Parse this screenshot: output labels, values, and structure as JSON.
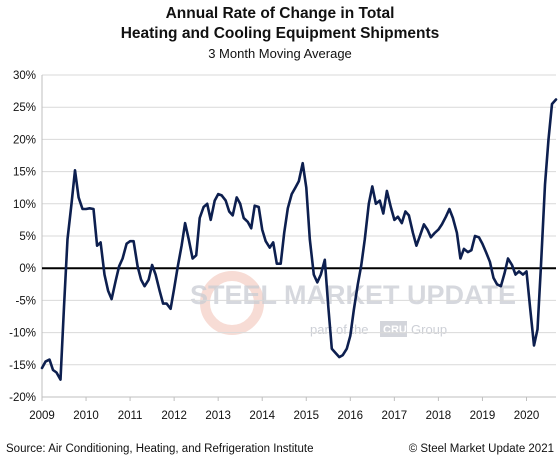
{
  "chart_data": {
    "type": "line",
    "title_lines": [
      "Annual Rate of Change in Total",
      "Heating and Cooling Equipment Shipments"
    ],
    "subtitle": "3 Month Moving Average",
    "xlabel": "",
    "ylabel": "",
    "ylim": [
      -20,
      30
    ],
    "yticks": [
      -20,
      -15,
      -10,
      -5,
      0,
      5,
      10,
      15,
      20,
      25,
      30
    ],
    "ytick_labels": [
      "-20%",
      "-15%",
      "-10%",
      "-5%",
      "0%",
      "5%",
      "10%",
      "15%",
      "20%",
      "25%",
      "30%"
    ],
    "xlim": [
      2009,
      2020.67
    ],
    "xticks": [
      2009,
      2010,
      2011,
      2012,
      2013,
      2014,
      2015,
      2016,
      2017,
      2018,
      2019,
      2020
    ],
    "xtick_labels": [
      "2009",
      "2010",
      "2011",
      "2012",
      "2013",
      "2014",
      "2015",
      "2016",
      "2017",
      "2018",
      "2019",
      "2020"
    ],
    "grid": "horizontal",
    "zero_line": true,
    "line_color": "#0d1f4f",
    "series": [
      {
        "x": [
          2009.0,
          2009.08,
          2009.17,
          2009.25,
          2009.33,
          2009.42,
          2009.5,
          2009.58,
          2009.67,
          2009.75,
          2009.83,
          2009.92,
          2010.0,
          2010.08,
          2010.17,
          2010.25,
          2010.33,
          2010.42,
          2010.5,
          2010.58,
          2010.67,
          2010.75,
          2010.83,
          2010.92,
          2011.0,
          2011.08,
          2011.17,
          2011.25,
          2011.33,
          2011.42,
          2011.5,
          2011.58,
          2011.67,
          2011.75,
          2011.83,
          2011.92,
          2012.0,
          2012.08,
          2012.17,
          2012.25,
          2012.33,
          2012.42,
          2012.5,
          2012.58,
          2012.67,
          2012.75,
          2012.83,
          2012.92,
          2013.0,
          2013.08,
          2013.17,
          2013.25,
          2013.33,
          2013.42,
          2013.5,
          2013.58,
          2013.67,
          2013.75,
          2013.83,
          2013.92,
          2014.0,
          2014.08,
          2014.17,
          2014.25,
          2014.33,
          2014.42,
          2014.5,
          2014.58,
          2014.67,
          2014.75,
          2014.83,
          2014.92,
          2015.0,
          2015.08,
          2015.17,
          2015.25,
          2015.33,
          2015.42,
          2015.5,
          2015.58,
          2015.67,
          2015.75,
          2015.83,
          2015.92,
          2016.0,
          2016.08,
          2016.17,
          2016.25,
          2016.33,
          2016.42,
          2016.5,
          2016.58,
          2016.67,
          2016.75,
          2016.83,
          2016.92,
          2017.0,
          2017.08,
          2017.17,
          2017.25,
          2017.33,
          2017.42,
          2017.5,
          2017.58,
          2017.67,
          2017.75,
          2017.83,
          2017.92,
          2018.0,
          2018.08,
          2018.17,
          2018.25,
          2018.33,
          2018.42,
          2018.5,
          2018.58,
          2018.67,
          2018.75,
          2018.83,
          2018.92,
          2019.0,
          2019.08,
          2019.17,
          2019.25,
          2019.33,
          2019.42,
          2019.5,
          2019.58,
          2019.67,
          2019.75,
          2019.83,
          2019.92,
          2020.0,
          2020.08,
          2020.17,
          2020.25,
          2020.33,
          2020.42,
          2020.5,
          2020.58,
          2020.67
        ],
        "values": [
          -15.5,
          -14.5,
          -14.2,
          -15.8,
          -16.2,
          -17.3,
          -6,
          4.5,
          10,
          15.2,
          11,
          9.2,
          9.2,
          9.3,
          9.2,
          3.5,
          4,
          -1,
          -3.5,
          -4.8,
          -2,
          0.3,
          1.5,
          3.8,
          4.2,
          4.2,
          0.3,
          -1.8,
          -2.8,
          -1.8,
          0.5,
          -1,
          -3.5,
          -5.5,
          -5.5,
          -6.3,
          -3.2,
          0.2,
          3.5,
          7,
          4.5,
          1.5,
          2,
          7.8,
          9.5,
          10,
          7.5,
          10.5,
          11.5,
          11.3,
          10.5,
          8.8,
          8.2,
          11,
          10,
          7.8,
          7.2,
          6.2,
          9.7,
          9.5,
          6,
          4.2,
          3.2,
          4,
          0.7,
          0.7,
          5.5,
          9.3,
          11.5,
          12.5,
          13.5,
          16.3,
          12.5,
          4.5,
          -1,
          -2.2,
          -1,
          1.3,
          -6,
          -12.5,
          -13.2,
          -13.8,
          -13.5,
          -12.5,
          -10.5,
          -6.5,
          -2.5,
          0.5,
          4.5,
          10,
          12.7,
          10,
          10.5,
          8.5,
          12,
          9.5,
          7.5,
          8,
          7,
          8.8,
          8.2,
          5.5,
          3.5,
          5,
          6.8,
          6,
          4.8,
          5.5,
          6,
          6.8,
          8,
          9.2,
          7.8,
          5.5,
          1.5,
          3,
          2.5,
          2.8,
          5,
          4.8,
          3.8,
          2.5,
          1,
          -1.5,
          -2.5,
          -2.8,
          -0.8,
          1.5,
          0.5,
          -1,
          -0.5,
          -1,
          -0.5,
          -6,
          -12,
          -9.5,
          0.5,
          13,
          20,
          25.5,
          26.2
        ]
      }
    ],
    "watermark": {
      "text": "STEEL MARKET UPDATE",
      "subtext_before": "part of the",
      "badge": "CRU",
      "subtext_after": "Group"
    },
    "source": "Source: Air Conditioning, Heating, and Refrigeration Institute",
    "copyright": "© Steel Market Update 2021"
  }
}
